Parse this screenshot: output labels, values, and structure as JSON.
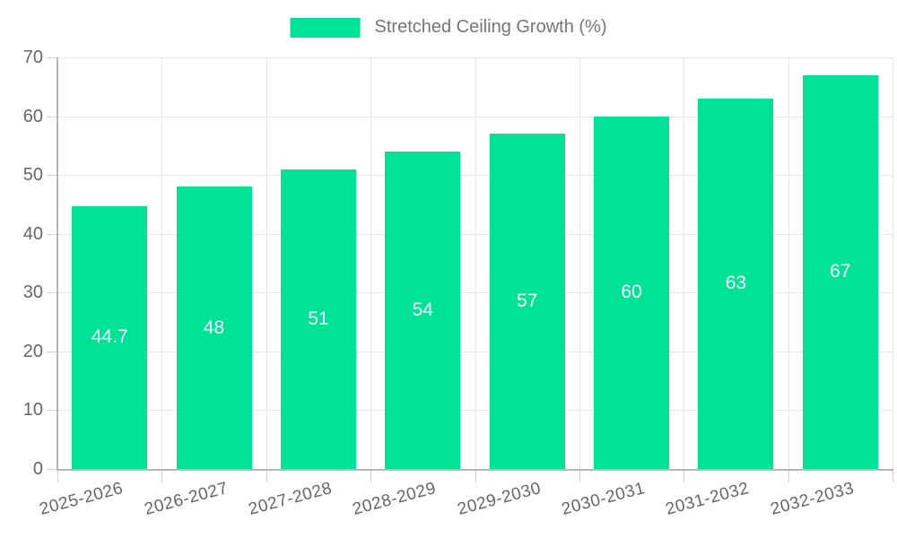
{
  "legend": {
    "label": "Stretched Ceiling Growth (%)"
  },
  "chart_data": {
    "type": "bar",
    "title": "Stretched Ceiling Growth (%)",
    "categories": [
      "2025-2026",
      "2026-2027",
      "2027-2028",
      "2028-2029",
      "2029-2030",
      "2030-2031",
      "2031-2032",
      "2032-2033"
    ],
    "values": [
      44.7,
      48,
      51,
      54,
      57,
      60,
      63,
      67
    ],
    "value_labels": [
      "44.7",
      "48",
      "51",
      "54",
      "57",
      "60",
      "63",
      "67"
    ],
    "xlabel": "",
    "ylabel": "",
    "ylim": [
      0,
      70
    ],
    "yticks": [
      0,
      10,
      20,
      30,
      40,
      50,
      60,
      70
    ],
    "grid": true,
    "legend_position": "top-center",
    "x_label_rotation": -15,
    "colors": {
      "bar": "#00E396",
      "grid": "#e7e7e7",
      "axis": "#b6b6b6",
      "tick": "#cfcfcf",
      "tick_text": "#666666",
      "legend_text": "#757575",
      "bar_label": "#ffffff",
      "background": "#ffffff"
    }
  }
}
